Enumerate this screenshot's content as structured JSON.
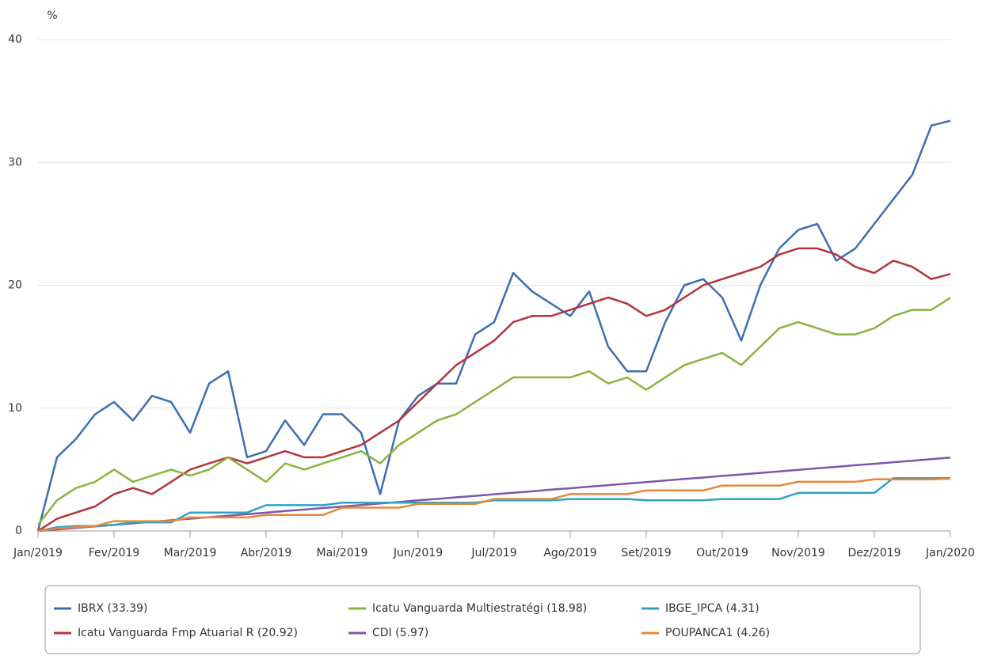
{
  "chart_data": {
    "type": "line",
    "y_label": "%",
    "x": [
      0,
      0.25,
      0.5,
      0.75,
      1,
      1.25,
      1.5,
      1.75,
      2,
      2.25,
      2.5,
      2.75,
      3,
      3.25,
      3.5,
      3.75,
      4,
      4.25,
      4.5,
      4.75,
      5,
      5.25,
      5.5,
      5.75,
      6,
      6.25,
      6.5,
      6.75,
      7,
      7.25,
      7.5,
      7.75,
      8,
      8.25,
      8.5,
      8.75,
      9,
      9.25,
      9.5,
      9.75,
      10,
      10.25,
      10.5,
      10.75,
      11,
      11.25,
      11.5,
      11.75,
      12
    ],
    "xlim": [
      0,
      12
    ],
    "xticks": [
      {
        "value": 0,
        "label": "Jan/2019"
      },
      {
        "value": 1,
        "label": "Fev/2019"
      },
      {
        "value": 2,
        "label": "Mar/2019"
      },
      {
        "value": 3,
        "label": "Abr/2019"
      },
      {
        "value": 4,
        "label": "Mai/2019"
      },
      {
        "value": 5,
        "label": "Jun/2019"
      },
      {
        "value": 6,
        "label": "Jul/2019"
      },
      {
        "value": 7,
        "label": "Ago/2019"
      },
      {
        "value": 8,
        "label": "Set/2019"
      },
      {
        "value": 9,
        "label": "Out/2019"
      },
      {
        "value": 10,
        "label": "Nov/2019"
      },
      {
        "value": 11,
        "label": "Dez/2019"
      },
      {
        "value": 12,
        "label": "Jan/2020"
      }
    ],
    "ylim": [
      0,
      40
    ],
    "yticks": [
      0,
      10,
      20,
      30,
      40
    ],
    "grid": true,
    "legend": "bottom",
    "series": [
      {
        "name": "IBRX (33.39)",
        "color": "#3c6eb4",
        "values": [
          0,
          6,
          7.5,
          9.5,
          10.5,
          9,
          11,
          10.5,
          8,
          12,
          13,
          6,
          6.5,
          9,
          7,
          9.5,
          9.5,
          8,
          3,
          9,
          11,
          12,
          12,
          16,
          17,
          21,
          19.5,
          18.5,
          17.5,
          19.5,
          15,
          13,
          13,
          17,
          20,
          20.5,
          19,
          15.5,
          20,
          23,
          24.5,
          25,
          22,
          23,
          25,
          27,
          29,
          33,
          33.39
        ]
      },
      {
        "name": "Icatu Vanguarda Fmp Atuarial R (20.92)",
        "color": "#b5343c",
        "values": [
          0,
          1,
          1.5,
          2,
          3,
          3.5,
          3,
          4,
          5,
          5.5,
          6,
          5.5,
          6,
          6.5,
          6,
          6,
          6.5,
          7,
          8,
          9,
          10.5,
          12,
          13.5,
          14.5,
          15.5,
          17,
          17.5,
          17.5,
          18,
          18.5,
          19,
          18.5,
          17.5,
          18,
          19,
          20,
          20.5,
          21,
          21.5,
          22.5,
          23,
          23,
          22.5,
          21.5,
          21,
          22,
          21.5,
          20.5,
          20.92
        ]
      },
      {
        "name": "Icatu Vanguarda Multiestratégi (18.98)",
        "color": "#8ab43c",
        "values": [
          0.5,
          2.5,
          3.5,
          4,
          5,
          4,
          4.5,
          5,
          4.5,
          5,
          6,
          5,
          4,
          5.5,
          5,
          5.5,
          6,
          6.5,
          5.5,
          7,
          8,
          9,
          9.5,
          10.5,
          11.5,
          12.5,
          12.5,
          12.5,
          12.5,
          13,
          12,
          12.5,
          11.5,
          12.5,
          13.5,
          14,
          14.5,
          13.5,
          15,
          16.5,
          17,
          16.5,
          16,
          16,
          16.5,
          17.5,
          18,
          18,
          18.98
        ]
      },
      {
        "name": "CDI (5.97)",
        "color": "#7d57a8",
        "values": [
          0,
          0.12,
          0.25,
          0.37,
          0.5,
          0.62,
          0.75,
          0.87,
          1.0,
          1.12,
          1.24,
          1.37,
          1.49,
          1.62,
          1.74,
          1.87,
          1.99,
          2.11,
          2.24,
          2.36,
          2.49,
          2.61,
          2.74,
          2.86,
          2.99,
          3.11,
          3.23,
          3.36,
          3.48,
          3.61,
          3.73,
          3.86,
          3.98,
          4.1,
          4.23,
          4.35,
          4.48,
          4.6,
          4.73,
          4.85,
          4.98,
          5.1,
          5.22,
          5.35,
          5.47,
          5.6,
          5.72,
          5.85,
          5.97
        ]
      },
      {
        "name": "IBGE_IPCA (4.31)",
        "color": "#2ea3c0",
        "values": [
          0,
          0.3,
          0.4,
          0.4,
          0.5,
          0.7,
          0.7,
          0.7,
          1.5,
          1.5,
          1.5,
          1.5,
          2.1,
          2.1,
          2.1,
          2.1,
          2.3,
          2.3,
          2.3,
          2.3,
          2.3,
          2.3,
          2.3,
          2.3,
          2.5,
          2.5,
          2.5,
          2.5,
          2.6,
          2.6,
          2.6,
          2.6,
          2.5,
          2.5,
          2.5,
          2.5,
          2.6,
          2.6,
          2.6,
          2.6,
          3.1,
          3.1,
          3.1,
          3.1,
          3.1,
          4.3,
          4.3,
          4.3,
          4.31
        ]
      },
      {
        "name": "POUPANCA1 (4.26)",
        "color": "#e8863a",
        "values": [
          0,
          0.2,
          0.3,
          0.4,
          0.8,
          0.8,
          0.8,
          0.8,
          1.1,
          1.1,
          1.1,
          1.1,
          1.3,
          1.3,
          1.3,
          1.3,
          1.9,
          1.9,
          1.9,
          1.9,
          2.2,
          2.2,
          2.2,
          2.2,
          2.6,
          2.6,
          2.6,
          2.6,
          3.0,
          3.0,
          3.0,
          3.0,
          3.3,
          3.3,
          3.3,
          3.3,
          3.7,
          3.7,
          3.7,
          3.7,
          4.0,
          4.0,
          4.0,
          4.0,
          4.2,
          4.2,
          4.2,
          4.2,
          4.26
        ]
      }
    ]
  }
}
